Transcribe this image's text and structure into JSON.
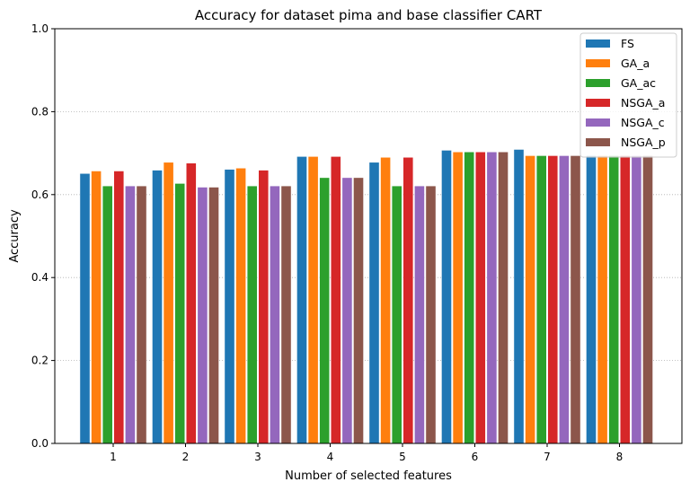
{
  "chart_data": {
    "type": "bar",
    "title": "Accuracy for dataset pima and base classifier CART",
    "xlabel": "Number of selected features",
    "ylabel": "Accuracy",
    "categories": [
      "1",
      "2",
      "3",
      "4",
      "5",
      "6",
      "7",
      "8"
    ],
    "ylim": [
      0,
      1.0
    ],
    "yticks": [
      "0.0",
      "0.2",
      "0.4",
      "0.6",
      "0.8",
      "1.0"
    ],
    "grid": "horizontal dotted",
    "legend_position": "top-right",
    "series": [
      {
        "name": "FS",
        "color": "#1f77b4",
        "values": [
          0.651,
          0.659,
          0.661,
          0.692,
          0.678,
          0.707,
          0.709,
          0.694
        ]
      },
      {
        "name": "GA_a",
        "color": "#ff7f0e",
        "values": [
          0.657,
          0.678,
          0.664,
          0.692,
          0.69,
          0.703,
          0.694,
          0.694
        ]
      },
      {
        "name": "GA_ac",
        "color": "#2ca02c",
        "values": [
          0.621,
          0.627,
          0.621,
          0.641,
          0.621,
          0.703,
          0.694,
          0.694
        ]
      },
      {
        "name": "NSGA_a",
        "color": "#d62728",
        "values": [
          0.657,
          0.676,
          0.659,
          0.692,
          0.69,
          0.703,
          0.694,
          0.694
        ]
      },
      {
        "name": "NSGA_c",
        "color": "#9467bd",
        "values": [
          0.621,
          0.618,
          0.621,
          0.641,
          0.621,
          0.703,
          0.694,
          0.694
        ]
      },
      {
        "name": "NSGA_p",
        "color": "#8c564b",
        "values": [
          0.621,
          0.618,
          0.621,
          0.641,
          0.621,
          0.703,
          0.694,
          0.694
        ]
      }
    ]
  }
}
